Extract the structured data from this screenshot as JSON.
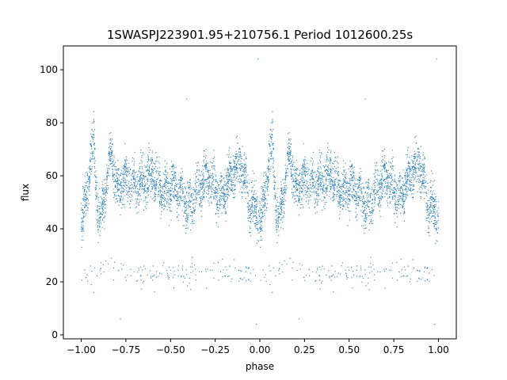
{
  "chart_data": {
    "type": "scatter",
    "title": "1SWASPJ223901.95+210756.1 Period 1012600.25s",
    "xlabel": "phase",
    "ylabel": "flux",
    "xlim": [
      -1.1,
      1.1
    ],
    "ylim": [
      -1.5,
      109
    ],
    "x_ticks": [
      -1.0,
      -0.75,
      -0.5,
      -0.25,
      0.0,
      0.25,
      0.5,
      0.75,
      1.0
    ],
    "x_tick_labels": [
      "−1.00",
      "−0.75",
      "−0.50",
      "−0.25",
      "0.00",
      "0.25",
      "0.50",
      "0.75",
      "1.00"
    ],
    "y_ticks": [
      0,
      20,
      40,
      60,
      80,
      100
    ],
    "y_tick_labels": [
      "0",
      "20",
      "40",
      "60",
      "80",
      "100"
    ],
    "grid": false,
    "marker_color": "#1f77b4",
    "series": [
      {
        "profile": [
          {
            "x": -1.0,
            "y": 44
          },
          {
            "x": -0.97,
            "y": 48
          },
          {
            "x": -0.95,
            "y": 66
          },
          {
            "x": -0.93,
            "y": 72
          },
          {
            "x": -0.91,
            "y": 50
          },
          {
            "x": -0.89,
            "y": 47
          },
          {
            "x": -0.87,
            "y": 54
          },
          {
            "x": -0.85,
            "y": 62
          },
          {
            "x": -0.83,
            "y": 68
          },
          {
            "x": -0.8,
            "y": 52
          },
          {
            "x": -0.77,
            "y": 57
          },
          {
            "x": -0.75,
            "y": 60
          },
          {
            "x": -0.7,
            "y": 58
          },
          {
            "x": -0.65,
            "y": 55
          },
          {
            "x": -0.6,
            "y": 60
          },
          {
            "x": -0.55,
            "y": 57
          },
          {
            "x": -0.5,
            "y": 55
          },
          {
            "x": -0.45,
            "y": 52
          },
          {
            "x": -0.4,
            "y": 50
          },
          {
            "x": -0.35,
            "y": 55
          },
          {
            "x": -0.3,
            "y": 58
          },
          {
            "x": -0.25,
            "y": 55
          },
          {
            "x": -0.2,
            "y": 56
          },
          {
            "x": -0.15,
            "y": 60
          },
          {
            "x": -0.1,
            "y": 62
          },
          {
            "x": -0.06,
            "y": 52
          },
          {
            "x": -0.03,
            "y": 50
          },
          {
            "x": 0.0,
            "y": 45
          }
        ],
        "spread": 8,
        "point_count": 2600,
        "secondary_band": {
          "y": 23,
          "spread": 2.5,
          "share": 0.05
        },
        "outliers": [
          {
            "x": -0.01,
            "y": 104
          },
          {
            "x": 0.99,
            "y": 104
          },
          {
            "x": -0.78,
            "y": 6
          },
          {
            "x": 0.22,
            "y": 6
          },
          {
            "x": -0.02,
            "y": 4
          },
          {
            "x": 0.98,
            "y": 4
          },
          {
            "x": -0.93,
            "y": 16
          },
          {
            "x": 0.07,
            "y": 16
          },
          {
            "x": -0.41,
            "y": 89
          },
          {
            "x": 0.59,
            "y": 89
          }
        ]
      }
    ]
  }
}
